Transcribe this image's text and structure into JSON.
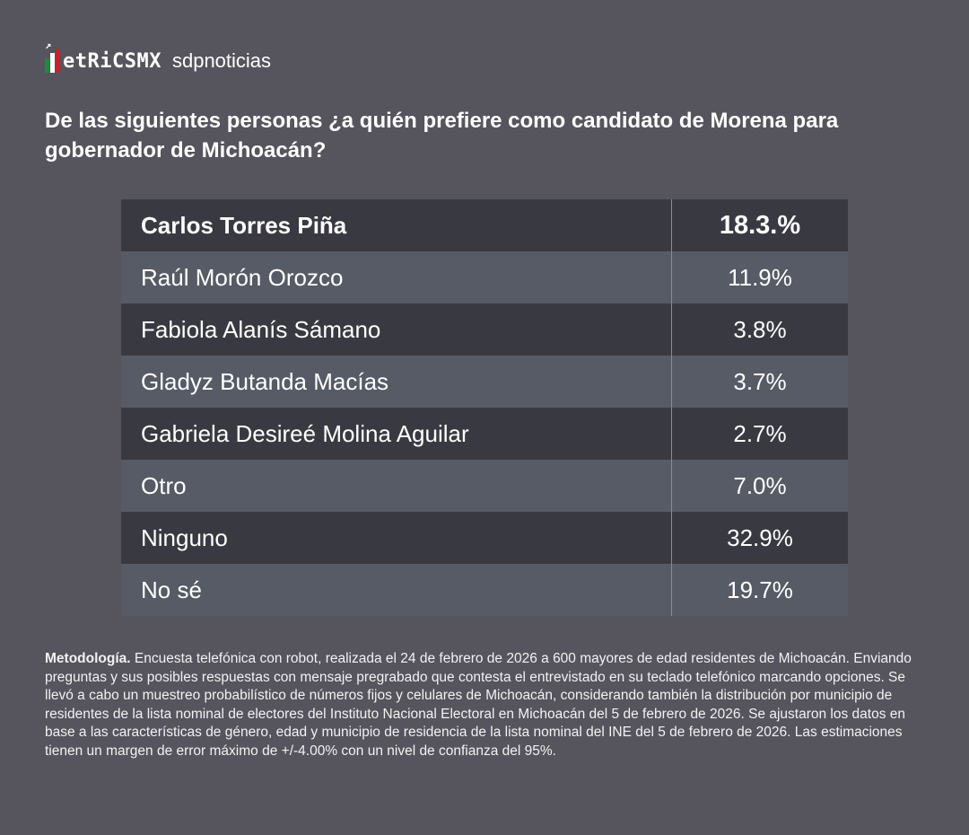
{
  "logo": {
    "brand1": "etRiCSMX",
    "brand2": "sdpnoticias"
  },
  "title": "De las siguientes personas ¿a quién prefiere como candidato de Morena para gobernador de Michoacán?",
  "colors": {
    "background": "#56545d",
    "row_dark": "#393a41",
    "row_light": "#575b66"
  },
  "chart_data": {
    "type": "table",
    "title": "De las siguientes personas ¿a quién prefiere como candidato de Morena para gobernador de Michoacán?",
    "rows": [
      {
        "name": "Carlos Torres Piña",
        "value": "18.3.%"
      },
      {
        "name": "Raúl Morón Orozco",
        "value": "11.9%"
      },
      {
        "name": "Fabiola Alanís Sámano",
        "value": "3.8%"
      },
      {
        "name": "Gladyz Butanda Macías",
        "value": "3.7%"
      },
      {
        "name": "Gabriela Desireé Molina Aguilar",
        "value": "2.7%"
      },
      {
        "name": "Otro",
        "value": "7.0%"
      },
      {
        "name": "Ninguno",
        "value": "32.9%"
      },
      {
        "name": "No sé",
        "value": "19.7%"
      }
    ]
  },
  "methodology": {
    "label": "Metodología.",
    "text": " Encuesta telefónica con robot, realizada el 24 de febrero de 2026 a 600 mayores de edad residentes de Michoacán. Enviando preguntas y sus posibles respuestas con mensaje pregrabado que contesta el entrevistado en su teclado telefónico marcando opciones. Se llevó a cabo un muestreo probabilístico de números fijos y celulares de Michoacán, considerando también la distribución por municipio de residentes de la lista nominal de electores del Instituto Nacional Electoral en Michoacán del 5 de febrero de 2026. Se ajustaron los datos en base a las características de género, edad y municipio de residencia de la lista nominal del INE del 5 de febrero de 2026. Las estimaciones tienen un margen de error máximo de +/-4.00% con un nivel de confianza del 95%."
  }
}
